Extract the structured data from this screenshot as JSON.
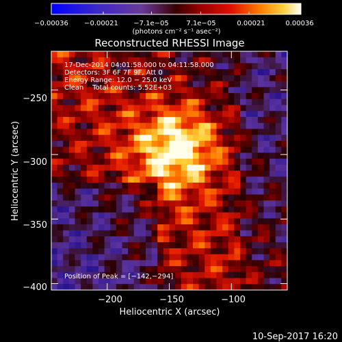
{
  "chart_data": {
    "type": "heatmap",
    "title": "Reconstructed RHESSI Image",
    "xlabel": "Heliocentric X (arcsec)",
    "ylabel": "Heliocentric Y (arcsec)",
    "xlim": [
      -245,
      -55
    ],
    "ylim": [
      -405,
      -220
    ],
    "x_ticks": [
      -200,
      -150,
      -100
    ],
    "x_tick_labels": [
      "−200",
      "−150",
      "−100"
    ],
    "y_ticks": [
      -250,
      -300,
      -350,
      -400
    ],
    "y_tick_labels": [
      "−250",
      "−300",
      "−350",
      "−400"
    ],
    "colorbar": {
      "range": [
        -0.00036,
        0.00036
      ],
      "ticks": [
        -0.00036,
        -0.00021,
        -7.1e-05,
        7.1e-05,
        0.00021,
        0.00036
      ],
      "tick_labels": [
        "−0.00036",
        "−0.00021",
        "−7.1e−05",
        "7.1e−05",
        "0.00021",
        "0.00036"
      ],
      "units_text": "(photons cm⁻² s⁻¹ asec⁻²)"
    },
    "annotations": [
      "17-Dec-2014 04:01:58.000 to 04:11:58.000",
      "Detectors: 3F 6F 7F 9F, Att 0",
      "Energy Range: 12.0 − 25.0 keV",
      "Clean    Total counts: 5.52E+03"
    ],
    "peak": {
      "label": "Position of Peak = [−142,−294]",
      "x": -142,
      "y": -294
    }
  },
  "footer": {
    "date": "10-Sep-2017 16:20"
  },
  "colors": {
    "background": "#000000",
    "text": "#ffffff"
  }
}
